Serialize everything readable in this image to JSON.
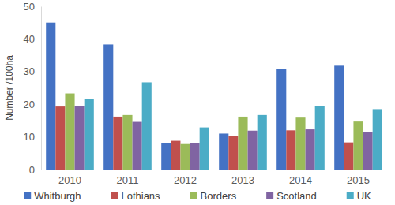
{
  "chart_data": {
    "type": "bar",
    "y_label": "Number /100ha",
    "categories": [
      "2010",
      "2011",
      "2012",
      "2013",
      "2014",
      "2015"
    ],
    "series": [
      {
        "name": "Whitburgh",
        "color": "#4472c4",
        "values": [
          45,
          38.3,
          8,
          11,
          30.8,
          31.8
        ]
      },
      {
        "name": "Lothians",
        "color": "#c0504d",
        "values": [
          19.3,
          16.2,
          8.8,
          10.3,
          12,
          8.3
        ]
      },
      {
        "name": "Borders",
        "color": "#9bbb59",
        "values": [
          23.3,
          16.7,
          7.8,
          16.2,
          15.9,
          14.7
        ]
      },
      {
        "name": "Scotland",
        "color": "#8064a2",
        "values": [
          19.5,
          14.6,
          8,
          11.9,
          12.3,
          11.5
        ]
      },
      {
        "name": "UK",
        "color": "#4bacc6",
        "values": [
          21.6,
          26.7,
          12.9,
          16.7,
          19.5,
          18.5
        ]
      }
    ],
    "ylim": [
      0,
      50
    ],
    "yticks": [
      0,
      10,
      20,
      30,
      40,
      50
    ],
    "grid": false,
    "legend": "bottom"
  }
}
